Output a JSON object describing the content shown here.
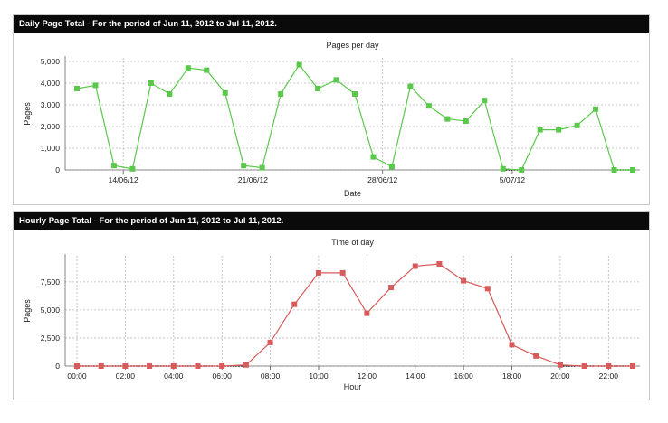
{
  "panels": [
    {
      "title": "Daily Page Total - For the period of Jun 11, 2012 to Jul 11, 2012."
    },
    {
      "title": "Hourly Page Total - For the period of Jun 11, 2012 to Jul 11, 2012."
    }
  ],
  "colors": {
    "daily": "#5ac84a",
    "hourly": "#d85a5a",
    "grid": "#b8b8b8"
  },
  "chart_data": [
    {
      "type": "line",
      "title": "Pages per day",
      "xlabel": "Date",
      "ylabel": "Pages",
      "ylim": [
        0,
        5000
      ],
      "yticks": [
        0,
        1000,
        2000,
        3000,
        4000,
        5000
      ],
      "ytick_labels": [
        "0",
        "1,000",
        "2,000",
        "3,000",
        "4,000",
        "5,000"
      ],
      "x": [
        0,
        1,
        2,
        3,
        4,
        5,
        6,
        7,
        8,
        9,
        10,
        11,
        12,
        13,
        14,
        15,
        16,
        17,
        18,
        19,
        20,
        21,
        22,
        23,
        24,
        25,
        26,
        27,
        28,
        29,
        30
      ],
      "xlim": [
        0,
        30
      ],
      "xticks": [
        2.5,
        9.5,
        16.5,
        23.5
      ],
      "xtick_labels": [
        "14/06/12",
        "21/06/12",
        "28/06/12",
        "5/07/12"
      ],
      "series": [
        {
          "name": "Pages",
          "values": [
            3750,
            3900,
            200,
            50,
            4000,
            3500,
            4700,
            4600,
            3550,
            200,
            100,
            3500,
            4850,
            3750,
            4150,
            3500,
            600,
            150,
            3850,
            2950,
            2350,
            2250,
            3200,
            50,
            0,
            1850,
            1850,
            2050,
            2800,
            0,
            0
          ]
        }
      ],
      "grid": true
    },
    {
      "type": "line",
      "title": "Time of day",
      "xlabel": "Hour",
      "ylabel": "Pages",
      "ylim": [
        0,
        9500
      ],
      "yticks": [
        0,
        2500,
        5000,
        7500
      ],
      "ytick_labels": [
        "0",
        "2,500",
        "5,000",
        "7,500"
      ],
      "x": [
        0,
        1,
        2,
        3,
        4,
        5,
        6,
        7,
        8,
        9,
        10,
        11,
        12,
        13,
        14,
        15,
        16,
        17,
        18,
        19,
        20,
        21,
        22,
        23
      ],
      "xlim": [
        0,
        23
      ],
      "xticks": [
        0,
        2,
        4,
        6,
        8,
        10,
        12,
        14,
        16,
        18,
        20,
        22
      ],
      "xtick_labels": [
        "00:00",
        "02:00",
        "04:00",
        "06:00",
        "08:00",
        "10:00",
        "12:00",
        "14:00",
        "16:00",
        "18:00",
        "20:00",
        "22:00"
      ],
      "series": [
        {
          "name": "Pages",
          "values": [
            0,
            0,
            0,
            0,
            0,
            0,
            0,
            100,
            2100,
            5500,
            8300,
            8300,
            4700,
            7000,
            8900,
            9100,
            7600,
            6900,
            1900,
            900,
            100,
            0,
            0,
            0
          ]
        }
      ],
      "grid": true
    }
  ]
}
